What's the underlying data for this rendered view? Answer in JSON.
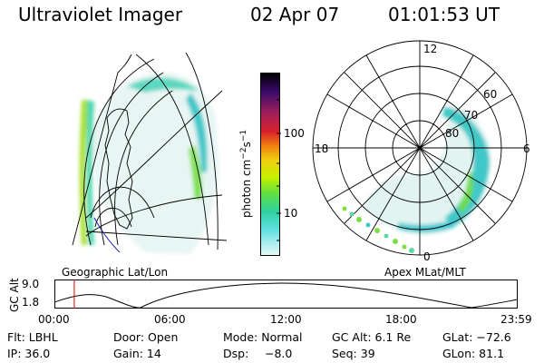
{
  "header": {
    "title": "Ultraviolet Imager",
    "date": "02 Apr 07",
    "time": "01:01:53 UT"
  },
  "colorbar": {
    "unit_label": "photon cm",
    "unit_exp1": "−2",
    "unit_s": "s",
    "unit_exp2": "−1",
    "ticks": [
      {
        "label": "100",
        "value": 100
      },
      {
        "label": "10",
        "value": 10
      }
    ],
    "colors": [
      "#000000",
      "#3a0a6a",
      "#a0205a",
      "#d8202a",
      "#f08010",
      "#f0d010",
      "#c8f000",
      "#60e040",
      "#30d0a0",
      "#60e0e0",
      "#e8f8f8"
    ]
  },
  "left_panel": {
    "caption": "Geographic Lat/Lon"
  },
  "right_panel": {
    "caption": "Apex MLat/MLT",
    "mlt_labels": {
      "top": "12",
      "left": "18",
      "right": "6",
      "bottom": "0"
    },
    "mlat_labels": [
      "60",
      "70",
      "80"
    ]
  },
  "altitude_plot": {
    "ylabel": "GC Alt",
    "y_ticks": [
      "9.0",
      "1.8"
    ],
    "x_ticks": [
      "00:00",
      "06:00",
      "12:00",
      "18:00",
      "23:59"
    ],
    "current_time_marker_hours": 1.03,
    "marker_color": "#e00000"
  },
  "status": {
    "filter": "Flt: LBHL",
    "ip": "IP: 36.0",
    "door": "Door: Open",
    "gain": "Gain: 14",
    "mode": "Mode: Normal",
    "dsp": "Dsp:",
    "dsp_value": "−8.0",
    "gc_alt": "GC Alt: 6.1 Re",
    "seq": "Seq: 39",
    "glat": "GLat: −72.6",
    "glon": "GLon: 81.1"
  }
}
